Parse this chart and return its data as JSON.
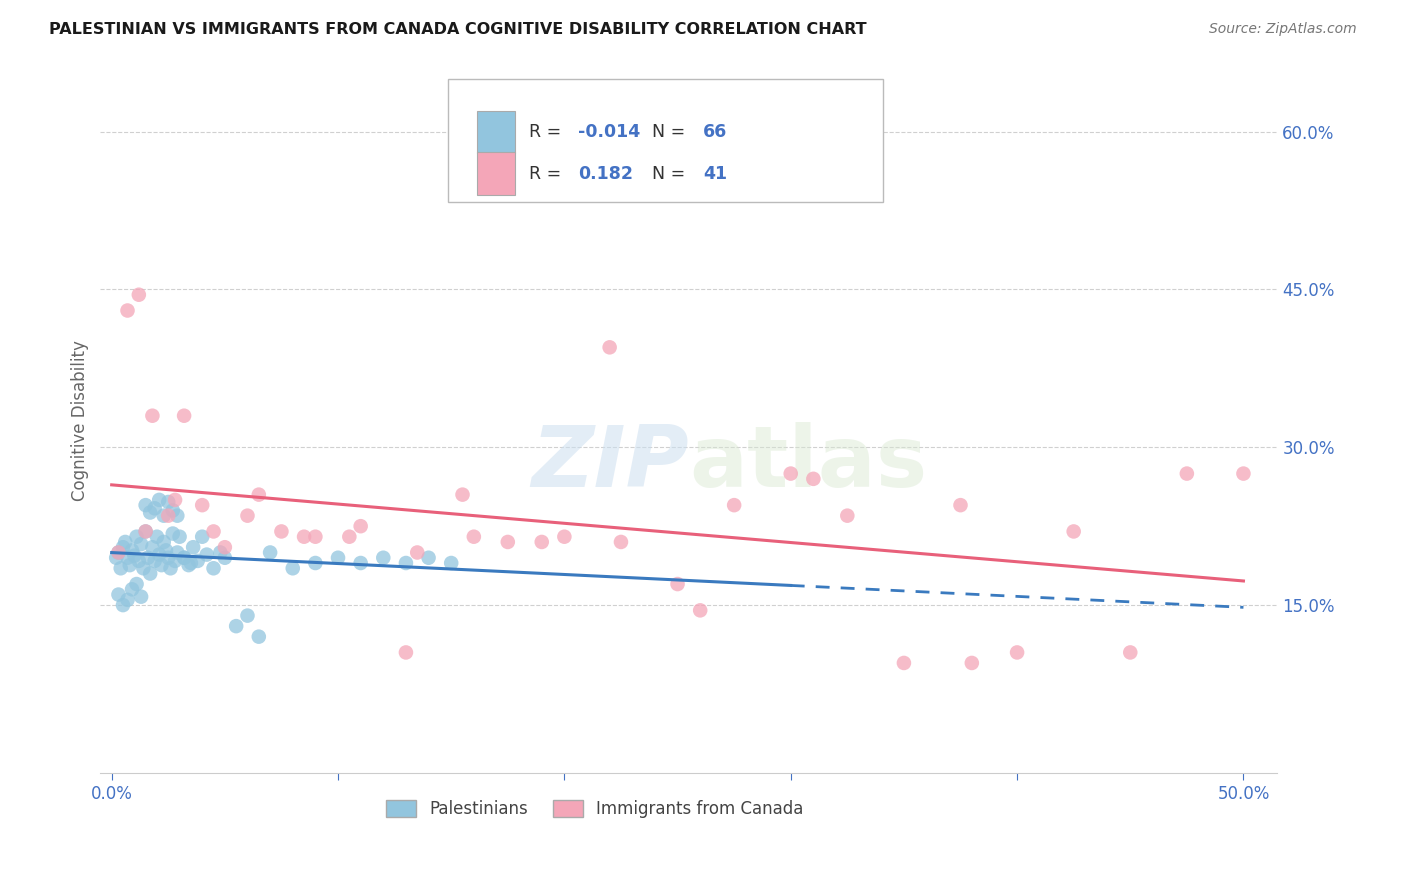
{
  "title": "PALESTINIAN VS IMMIGRANTS FROM CANADA COGNITIVE DISABILITY CORRELATION CHART",
  "source": "Source: ZipAtlas.com",
  "ylabel": "Cognitive Disability",
  "legend_label1": "Palestinians",
  "legend_label2": "Immigrants from Canada",
  "R1": -0.014,
  "N1": 66,
  "R2": 0.182,
  "N2": 41,
  "color_blue": "#92c5de",
  "color_pink": "#f4a6b8",
  "color_blue_line": "#3a7abf",
  "color_pink_line": "#e8607a",
  "color_blue_text": "#4472c4",
  "color_axis_label": "#4472c4",
  "xlim": [
    -0.005,
    0.515
  ],
  "ylim": [
    -0.01,
    0.66
  ],
  "yticks": [
    0.15,
    0.3,
    0.45,
    0.6
  ],
  "ytick_labels": [
    "15.0%",
    "30.0%",
    "45.0%",
    "60.0%"
  ],
  "palestinians_x": [
    0.002,
    0.003,
    0.004,
    0.005,
    0.006,
    0.007,
    0.008,
    0.009,
    0.01,
    0.011,
    0.012,
    0.013,
    0.014,
    0.015,
    0.016,
    0.017,
    0.018,
    0.019,
    0.02,
    0.021,
    0.022,
    0.023,
    0.024,
    0.025,
    0.026,
    0.027,
    0.028,
    0.029,
    0.03,
    0.032,
    0.034,
    0.036,
    0.038,
    0.04,
    0.042,
    0.045,
    0.048,
    0.05,
    0.055,
    0.06,
    0.065,
    0.07,
    0.08,
    0.09,
    0.1,
    0.11,
    0.12,
    0.13,
    0.14,
    0.15,
    0.003,
    0.005,
    0.007,
    0.009,
    0.011,
    0.013,
    0.015,
    0.017,
    0.019,
    0.021,
    0.023,
    0.025,
    0.027,
    0.029,
    0.032,
    0.035
  ],
  "palestinians_y": [
    0.195,
    0.2,
    0.185,
    0.205,
    0.21,
    0.195,
    0.188,
    0.202,
    0.197,
    0.215,
    0.192,
    0.208,
    0.185,
    0.22,
    0.195,
    0.18,
    0.205,
    0.192,
    0.215,
    0.198,
    0.188,
    0.21,
    0.202,
    0.195,
    0.185,
    0.218,
    0.192,
    0.2,
    0.215,
    0.195,
    0.188,
    0.205,
    0.192,
    0.215,
    0.198,
    0.185,
    0.2,
    0.195,
    0.13,
    0.14,
    0.12,
    0.2,
    0.185,
    0.19,
    0.195,
    0.19,
    0.195,
    0.19,
    0.195,
    0.19,
    0.16,
    0.15,
    0.155,
    0.165,
    0.17,
    0.158,
    0.245,
    0.238,
    0.242,
    0.25,
    0.235,
    0.248,
    0.24,
    0.235,
    0.195,
    0.19
  ],
  "canada_x": [
    0.003,
    0.007,
    0.012,
    0.018,
    0.025,
    0.032,
    0.04,
    0.05,
    0.06,
    0.075,
    0.09,
    0.11,
    0.13,
    0.155,
    0.175,
    0.2,
    0.225,
    0.25,
    0.275,
    0.3,
    0.325,
    0.35,
    0.375,
    0.4,
    0.425,
    0.45,
    0.475,
    0.5,
    0.015,
    0.028,
    0.045,
    0.065,
    0.085,
    0.105,
    0.135,
    0.16,
    0.19,
    0.22,
    0.26,
    0.31,
    0.38
  ],
  "canada_y": [
    0.2,
    0.43,
    0.445,
    0.33,
    0.235,
    0.33,
    0.245,
    0.205,
    0.235,
    0.22,
    0.215,
    0.225,
    0.105,
    0.255,
    0.21,
    0.215,
    0.21,
    0.17,
    0.245,
    0.275,
    0.235,
    0.095,
    0.245,
    0.105,
    0.22,
    0.105,
    0.275,
    0.275,
    0.22,
    0.25,
    0.22,
    0.255,
    0.215,
    0.215,
    0.2,
    0.215,
    0.21,
    0.395,
    0.145,
    0.27,
    0.095
  ]
}
